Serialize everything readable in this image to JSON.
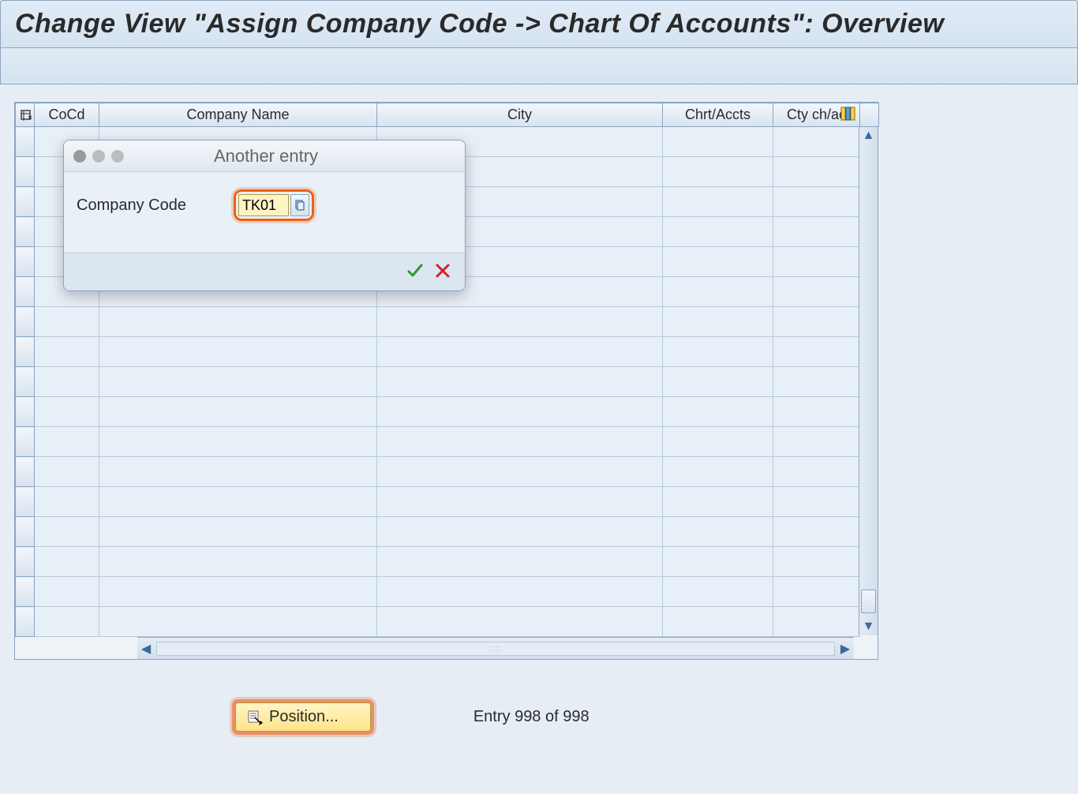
{
  "title": "Change View \"Assign Company Code -> Chart Of Accounts\": Overview",
  "columns": {
    "sel": "",
    "cocd": "CoCd",
    "company_name": "Company Name",
    "city": "City",
    "chrt_accts": "Chrt/Accts",
    "cty_ch_ac": "Cty ch/ac"
  },
  "column_widths": {
    "sel": 24,
    "cocd": 82,
    "company_name": 352,
    "city": 362,
    "chrt_accts": 140,
    "cty_ch_ac": 110,
    "scroll": 24
  },
  "row_count": 17,
  "dialog": {
    "title": "Another entry",
    "field_label": "Company Code",
    "field_value": "TK01"
  },
  "footer": {
    "position_label": "Position...",
    "entry_status": "Entry 998 of 998"
  },
  "colors": {
    "highlight": "#ec611c",
    "button_bg": "#ffe48a",
    "input_bg": "#fff4c4",
    "border": "#8ba5bf",
    "page_bg": "#e6edf5"
  }
}
